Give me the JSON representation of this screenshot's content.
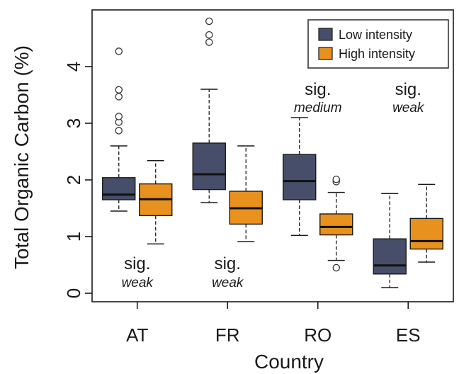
{
  "chart_data": {
    "type": "box",
    "xlabel": "Country",
    "ylabel": "Total Organic Carbon (%)",
    "categories": [
      "AT",
      "FR",
      "RO",
      "ES"
    ],
    "ylim": [
      -0.15,
      5.0
    ],
    "yticks": [
      0,
      1,
      2,
      3,
      4
    ],
    "legend_position": "top-right",
    "grid": false,
    "series": [
      {
        "name": "Low intensity",
        "color": "#474e69",
        "boxes": [
          {
            "whisker_low": 1.45,
            "q1": 1.65,
            "median": 1.74,
            "q3": 2.04,
            "whisker_high": 2.6,
            "outliers": [
              2.87,
              3.02,
              3.12,
              3.47,
              3.59,
              4.27
            ]
          },
          {
            "whisker_low": 1.6,
            "q1": 1.83,
            "median": 2.1,
            "q3": 2.65,
            "whisker_high": 3.6,
            "outliers": [
              4.43,
              4.56,
              4.8
            ]
          },
          {
            "whisker_low": 1.02,
            "q1": 1.65,
            "median": 1.98,
            "q3": 2.45,
            "whisker_high": 3.1,
            "outliers": []
          },
          {
            "whisker_low": 0.1,
            "q1": 0.34,
            "median": 0.49,
            "q3": 0.96,
            "whisker_high": 1.76,
            "outliers": []
          }
        ]
      },
      {
        "name": "High intensity",
        "color": "#e8911e",
        "boxes": [
          {
            "whisker_low": 0.87,
            "q1": 1.37,
            "median": 1.66,
            "q3": 1.93,
            "whisker_high": 2.34,
            "outliers": []
          },
          {
            "whisker_low": 0.91,
            "q1": 1.22,
            "median": 1.5,
            "q3": 1.8,
            "whisker_high": 2.6,
            "outliers": []
          },
          {
            "whisker_low": 0.58,
            "q1": 1.03,
            "median": 1.17,
            "q3": 1.4,
            "whisker_high": 1.78,
            "outliers": [
              0.45,
              1.97,
              2.01
            ]
          },
          {
            "whisker_low": 0.55,
            "q1": 0.78,
            "median": 0.92,
            "q3": 1.32,
            "whisker_high": 1.92,
            "outliers": []
          }
        ]
      }
    ],
    "annotations": [
      {
        "category": "AT",
        "sig": "sig.",
        "level": "weak",
        "position": "bottom"
      },
      {
        "category": "FR",
        "sig": "sig.",
        "level": "weak",
        "position": "bottom"
      },
      {
        "category": "RO",
        "sig": "sig.",
        "level": "medium",
        "position": "top"
      },
      {
        "category": "ES",
        "sig": "sig.",
        "level": "weak",
        "position": "top"
      }
    ]
  }
}
